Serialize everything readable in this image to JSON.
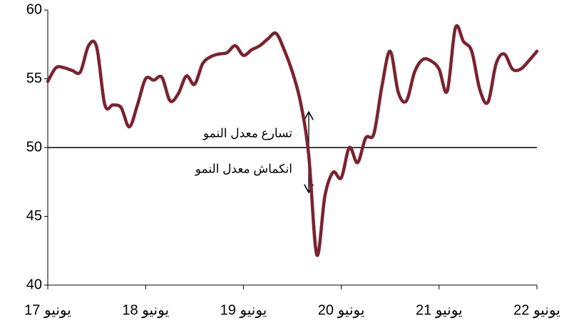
{
  "chart_data": {
    "type": "line",
    "categories": [
      "يونيو 17",
      null,
      null,
      null,
      null,
      null,
      null,
      null,
      null,
      null,
      null,
      null,
      "يونيو 18",
      null,
      null,
      null,
      null,
      null,
      null,
      null,
      null,
      null,
      null,
      null,
      "يونيو 19",
      null,
      null,
      null,
      null,
      null,
      null,
      null,
      null,
      null,
      null,
      null,
      "يونيو 20",
      null,
      null,
      null,
      null,
      null,
      null,
      null,
      null,
      null,
      null,
      null,
      "يونيو 21",
      null,
      null,
      null,
      null,
      null,
      null,
      null,
      null,
      null,
      null,
      null,
      "يونيو 22"
    ],
    "series": [
      {
        "color": "#7b2230",
        "values": [
          54.8,
          55.8,
          55.8,
          55.6,
          55.5,
          57.4,
          57.3,
          53.1,
          53.1,
          52.9,
          51.5,
          53.1,
          55.0,
          54.9,
          55.1,
          53.4,
          53.9,
          55.2,
          54.6,
          56.1,
          56.6,
          56.8,
          56.9,
          57.4,
          56.7,
          57.1,
          57.4,
          57.9,
          58.3,
          57.1,
          55.5,
          53.3,
          49.5,
          42.2,
          46.5,
          48.2,
          47.8,
          50.0,
          48.9,
          50.7,
          51.0,
          54.5,
          57.0,
          54.0,
          53.4,
          55.5,
          56.4,
          56.3,
          55.7,
          54.1,
          58.7,
          57.7,
          57.0,
          54.2,
          53.3,
          56.1,
          56.8,
          55.7,
          55.7,
          56.3,
          57.0
        ]
      }
    ],
    "ylim": [
      40,
      60
    ],
    "yticks": [
      40,
      45,
      50,
      55,
      60
    ],
    "reference_line": 50,
    "annotations": [
      "تسارع معدل النمو",
      "انكماش معدل النمو"
    ]
  }
}
